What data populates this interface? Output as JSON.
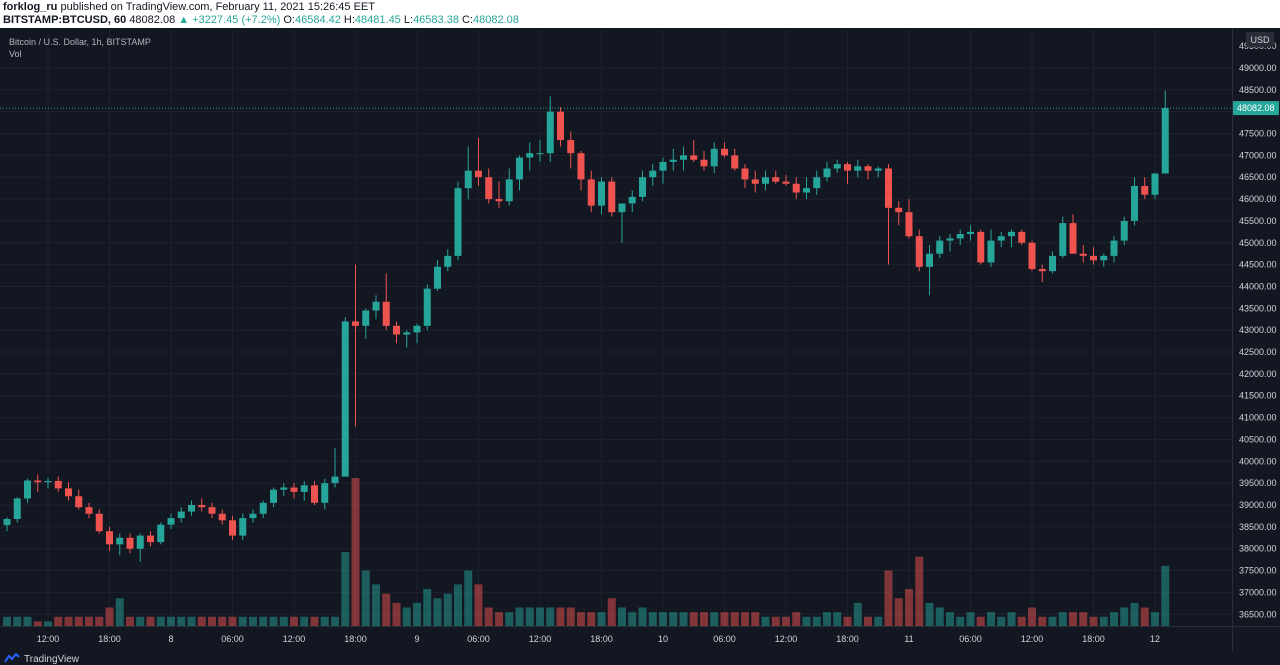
{
  "header": {
    "author": "forklog_ru",
    "published_text": "published on TradingView.com, February 11, 2021 15:26:45 EET",
    "symbol": "BITSTAMP:BTCUSD, 60",
    "last": "48082.08",
    "change": "▲ +3227.45 (+7.2%)",
    "o_label": "O:",
    "o_value": "46584.42",
    "h_label": "H:",
    "h_value": "48481.45",
    "l_label": "L:",
    "l_value": "46583.38",
    "c_label": "C:",
    "c_value": "48082.08"
  },
  "legend": {
    "title": "Bitcoin / U.S. Dollar, 1h, BITSTAMP",
    "volume_label": "Vol"
  },
  "footer": {
    "brand": "TradingView"
  },
  "colors": {
    "up": "#26a69a",
    "down": "#ef5350",
    "background": "#131722",
    "grid": "#1e222d",
    "axis_text": "#d1d4dc",
    "price_tag": "#26a69a"
  },
  "chart_data": {
    "type": "candlestick",
    "currency_label": "USD",
    "last_price_tag": "48082.08",
    "y_ticks": [
      "49000.00",
      "48500.00",
      "48000.00",
      "47500.00",
      "47000.00",
      "46500.00",
      "46000.00",
      "45500.00",
      "45000.00",
      "44500.00",
      "44000.00",
      "43500.00",
      "43000.00",
      "42500.00",
      "42000.00",
      "41500.00",
      "41000.00",
      "40500.00",
      "40000.00",
      "39500.00",
      "39000.00",
      "38500.00",
      "38000.00",
      "37500.00",
      "37000.00",
      "36500.00"
    ],
    "y_top_label": "49500.00",
    "ylim": [
      36300,
      49800
    ],
    "x_ticks": [
      {
        "label": "12:00",
        "index": 4
      },
      {
        "label": "18:00",
        "index": 10
      },
      {
        "label": "8",
        "index": 16
      },
      {
        "label": "06:00",
        "index": 22
      },
      {
        "label": "12:00",
        "index": 28
      },
      {
        "label": "18:00",
        "index": 34
      },
      {
        "label": "9",
        "index": 40
      },
      {
        "label": "06:00",
        "index": 46
      },
      {
        "label": "12:00",
        "index": 52
      },
      {
        "label": "18:00",
        "index": 58
      },
      {
        "label": "10",
        "index": 64
      },
      {
        "label": "06:00",
        "index": 70
      },
      {
        "label": "12:00",
        "index": 76
      },
      {
        "label": "18:00",
        "index": 82
      },
      {
        "label": "11",
        "index": 88
      },
      {
        "label": "06:00",
        "index": 94
      },
      {
        "label": "12:00",
        "index": 100
      },
      {
        "label": "18:00",
        "index": 106
      },
      {
        "label": "12",
        "index": 112
      }
    ],
    "candles": [
      [
        38540,
        38720,
        38400,
        38680,
        0.2
      ],
      [
        38680,
        39180,
        38600,
        39150,
        0.2
      ],
      [
        39150,
        39600,
        39050,
        39560,
        0.2
      ],
      [
        39560,
        39700,
        39300,
        39520,
        0.1
      ],
      [
        39520,
        39620,
        39380,
        39550,
        0.1
      ],
      [
        39550,
        39650,
        39300,
        39380,
        0.2
      ],
      [
        39380,
        39520,
        39100,
        39200,
        0.2
      ],
      [
        39200,
        39350,
        38900,
        38950,
        0.2
      ],
      [
        38950,
        39050,
        38700,
        38800,
        0.2
      ],
      [
        38800,
        38900,
        38350,
        38400,
        0.2
      ],
      [
        38400,
        38500,
        37950,
        38100,
        0.4
      ],
      [
        38100,
        38350,
        37850,
        38250,
        0.6
      ],
      [
        38250,
        38350,
        37900,
        38000,
        0.2
      ],
      [
        38000,
        38350,
        37700,
        38300,
        0.2
      ],
      [
        38300,
        38400,
        38050,
        38150,
        0.2
      ],
      [
        38150,
        38600,
        38100,
        38550,
        0.2
      ],
      [
        38550,
        38800,
        38450,
        38700,
        0.2
      ],
      [
        38700,
        38950,
        38600,
        38850,
        0.2
      ],
      [
        38850,
        39100,
        38750,
        39000,
        0.2
      ],
      [
        39000,
        39150,
        38850,
        38950,
        0.2
      ],
      [
        38950,
        39050,
        38700,
        38800,
        0.2
      ],
      [
        38800,
        38900,
        38550,
        38650,
        0.2
      ],
      [
        38650,
        38750,
        38200,
        38300,
        0.2
      ],
      [
        38300,
        38800,
        38200,
        38700,
        0.2
      ],
      [
        38700,
        38900,
        38600,
        38800,
        0.2
      ],
      [
        38800,
        39100,
        38700,
        39050,
        0.2
      ],
      [
        39050,
        39400,
        38950,
        39350,
        0.2
      ],
      [
        39350,
        39500,
        39200,
        39400,
        0.2
      ],
      [
        39400,
        39500,
        39150,
        39300,
        0.2
      ],
      [
        39300,
        39550,
        39100,
        39450,
        0.2
      ],
      [
        39450,
        39550,
        39000,
        39050,
        0.2
      ],
      [
        39050,
        39600,
        38900,
        39500,
        0.2
      ],
      [
        39500,
        40300,
        39400,
        39650,
        0.2
      ],
      [
        39650,
        43300,
        39650,
        43200,
        1.6
      ],
      [
        43200,
        44500,
        40800,
        43100,
        3.2
      ],
      [
        43100,
        43500,
        42800,
        43450,
        1.2
      ],
      [
        43450,
        43800,
        43250,
        43650,
        0.9
      ],
      [
        43650,
        44300,
        43000,
        43100,
        0.7
      ],
      [
        43100,
        43200,
        42700,
        42900,
        0.5
      ],
      [
        42900,
        43000,
        42600,
        42950,
        0.4
      ],
      [
        42950,
        43150,
        42700,
        43100,
        0.5
      ],
      [
        43100,
        44050,
        43000,
        43950,
        0.8
      ],
      [
        43950,
        44600,
        43900,
        44450,
        0.6
      ],
      [
        44450,
        44850,
        44350,
        44700,
        0.7
      ],
      [
        44700,
        46400,
        44600,
        46250,
        0.9
      ],
      [
        46250,
        47200,
        46000,
        46650,
        1.2
      ],
      [
        46650,
        47400,
        46300,
        46500,
        0.9
      ],
      [
        46500,
        46700,
        45900,
        46000,
        0.4
      ],
      [
        46000,
        46400,
        45800,
        45950,
        0.3
      ],
      [
        45950,
        46700,
        45850,
        46450,
        0.3
      ],
      [
        46450,
        47000,
        46200,
        46950,
        0.4
      ],
      [
        46950,
        47300,
        46650,
        47050,
        0.4
      ],
      [
        47050,
        47350,
        46850,
        47050,
        0.4
      ],
      [
        47050,
        48350,
        46850,
        48000,
        0.4
      ],
      [
        48000,
        48100,
        47200,
        47350,
        0.4
      ],
      [
        47350,
        47550,
        46700,
        47050,
        0.4
      ],
      [
        47050,
        47100,
        46200,
        46450,
        0.3
      ],
      [
        46450,
        46650,
        45700,
        45850,
        0.3
      ],
      [
        45850,
        46500,
        45650,
        46400,
        0.3
      ],
      [
        46400,
        46500,
        45600,
        45700,
        0.6
      ],
      [
        45700,
        45900,
        45000,
        45900,
        0.4
      ],
      [
        45900,
        46200,
        45700,
        46050,
        0.3
      ],
      [
        46050,
        46650,
        45950,
        46500,
        0.4
      ],
      [
        46500,
        46800,
        46300,
        46650,
        0.3
      ],
      [
        46650,
        46950,
        46350,
        46850,
        0.3
      ],
      [
        46850,
        47150,
        46650,
        46900,
        0.3
      ],
      [
        46900,
        47200,
        46650,
        47000,
        0.3
      ],
      [
        47000,
        47350,
        46850,
        46900,
        0.3
      ],
      [
        46900,
        47100,
        46650,
        46750,
        0.3
      ],
      [
        46750,
        47300,
        46600,
        47150,
        0.3
      ],
      [
        47150,
        47300,
        46950,
        47000,
        0.3
      ],
      [
        47000,
        47150,
        46650,
        46700,
        0.3
      ],
      [
        46700,
        46800,
        46250,
        46450,
        0.3
      ],
      [
        46450,
        46650,
        46150,
        46350,
        0.3
      ],
      [
        46350,
        46650,
        46200,
        46500,
        0.2
      ],
      [
        46500,
        46650,
        46350,
        46400,
        0.2
      ],
      [
        46400,
        46550,
        46300,
        46350,
        0.2
      ],
      [
        46350,
        46500,
        46000,
        46150,
        0.3
      ],
      [
        46150,
        46500,
        46000,
        46250,
        0.2
      ],
      [
        46250,
        46650,
        46100,
        46500,
        0.2
      ],
      [
        46500,
        46850,
        46400,
        46700,
        0.3
      ],
      [
        46700,
        46900,
        46600,
        46800,
        0.3
      ],
      [
        46800,
        46850,
        46350,
        46650,
        0.2
      ],
      [
        46650,
        46900,
        46500,
        46750,
        0.5
      ],
      [
        46750,
        46800,
        46450,
        46650,
        0.2
      ],
      [
        46650,
        46750,
        46500,
        46700,
        0.2
      ],
      [
        46700,
        46800,
        44500,
        45800,
        1.2
      ],
      [
        45800,
        45950,
        45400,
        45700,
        0.6
      ],
      [
        45700,
        46000,
        45100,
        45150,
        0.8
      ],
      [
        45150,
        45300,
        44350,
        44450,
        1.5
      ],
      [
        44450,
        44950,
        43800,
        44750,
        0.5
      ],
      [
        44750,
        45150,
        44650,
        45050,
        0.4
      ],
      [
        45050,
        45200,
        44800,
        45100,
        0.3
      ],
      [
        45100,
        45300,
        44950,
        45200,
        0.2
      ],
      [
        45200,
        45400,
        45050,
        45250,
        0.3
      ],
      [
        45250,
        45300,
        44500,
        44550,
        0.2
      ],
      [
        44550,
        45300,
        44450,
        45050,
        0.3
      ],
      [
        45050,
        45250,
        44900,
        45150,
        0.2
      ],
      [
        45150,
        45300,
        44900,
        45250,
        0.3
      ],
      [
        45250,
        45300,
        44950,
        45000,
        0.2
      ],
      [
        45000,
        45050,
        44350,
        44400,
        0.4
      ],
      [
        44400,
        44500,
        44100,
        44350,
        0.2
      ],
      [
        44350,
        44800,
        44300,
        44700,
        0.2
      ],
      [
        44700,
        45600,
        44650,
        45450,
        0.3
      ],
      [
        45450,
        45650,
        44750,
        44750,
        0.3
      ],
      [
        44750,
        44950,
        44550,
        44700,
        0.3
      ],
      [
        44700,
        44900,
        44500,
        44600,
        0.2
      ],
      [
        44600,
        44750,
        44450,
        44700,
        0.2
      ],
      [
        44700,
        45150,
        44550,
        45050,
        0.3
      ],
      [
        45050,
        45600,
        44950,
        45500,
        0.4
      ],
      [
        45500,
        46500,
        45400,
        46300,
        0.5
      ],
      [
        46300,
        46500,
        46000,
        46100,
        0.4
      ],
      [
        46100,
        46600,
        46000,
        46584,
        0.3
      ],
      [
        46584,
        48481,
        46583,
        48082,
        1.3
      ]
    ]
  }
}
